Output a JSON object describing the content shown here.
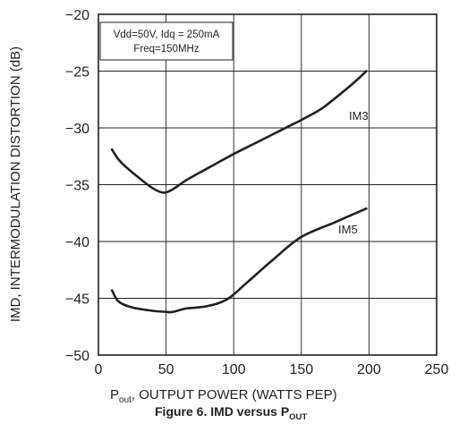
{
  "chart_data": {
    "type": "line",
    "title": "",
    "caption": {
      "main": "Figure 6. IMD versus P",
      "sub": "OUT"
    },
    "xlabel": {
      "p": "P",
      "sub": "out",
      "rest": ", OUTPUT POWER (WATTS PEP)"
    },
    "ylabel": "IMD, INTERMODULATION DISTORTION (dB)",
    "xlim": [
      0,
      250
    ],
    "ylim": [
      -50,
      -20
    ],
    "xticks": [
      0,
      50,
      100,
      150,
      200,
      250
    ],
    "yticks": [
      -20,
      -25,
      -30,
      -35,
      -40,
      -45,
      -50
    ],
    "xtick_labels": [
      "0",
      "50",
      "100",
      "150",
      "200",
      "250"
    ],
    "ytick_labels": [
      "−20",
      "−25",
      "−30",
      "−35",
      "−40",
      "−45",
      "−50"
    ],
    "grid": true,
    "annotation": {
      "line1": "Vdd=50V, Idq = 250mA",
      "line2": "Freq=150MHz"
    },
    "series": [
      {
        "name": "IM3",
        "x": [
          10,
          15,
          20,
          30,
          40,
          48,
          55,
          65,
          80,
          100,
          120,
          140,
          150,
          165,
          180,
          190,
          198
        ],
        "y": [
          -31.9,
          -32.8,
          -33.4,
          -34.4,
          -35.3,
          -35.7,
          -35.4,
          -34.6,
          -33.6,
          -32.3,
          -31.1,
          -29.9,
          -29.3,
          -28.3,
          -26.9,
          -25.9,
          -25.0
        ]
      },
      {
        "name": "IM5",
        "x": [
          10,
          15,
          25,
          40,
          50,
          55,
          65,
          80,
          95,
          110,
          130,
          150,
          175,
          198
        ],
        "y": [
          -44.3,
          -45.3,
          -45.8,
          -46.1,
          -46.2,
          -46.2,
          -45.9,
          -45.7,
          -45.1,
          -43.6,
          -41.5,
          -39.6,
          -38.3,
          -37.1
        ]
      }
    ]
  }
}
